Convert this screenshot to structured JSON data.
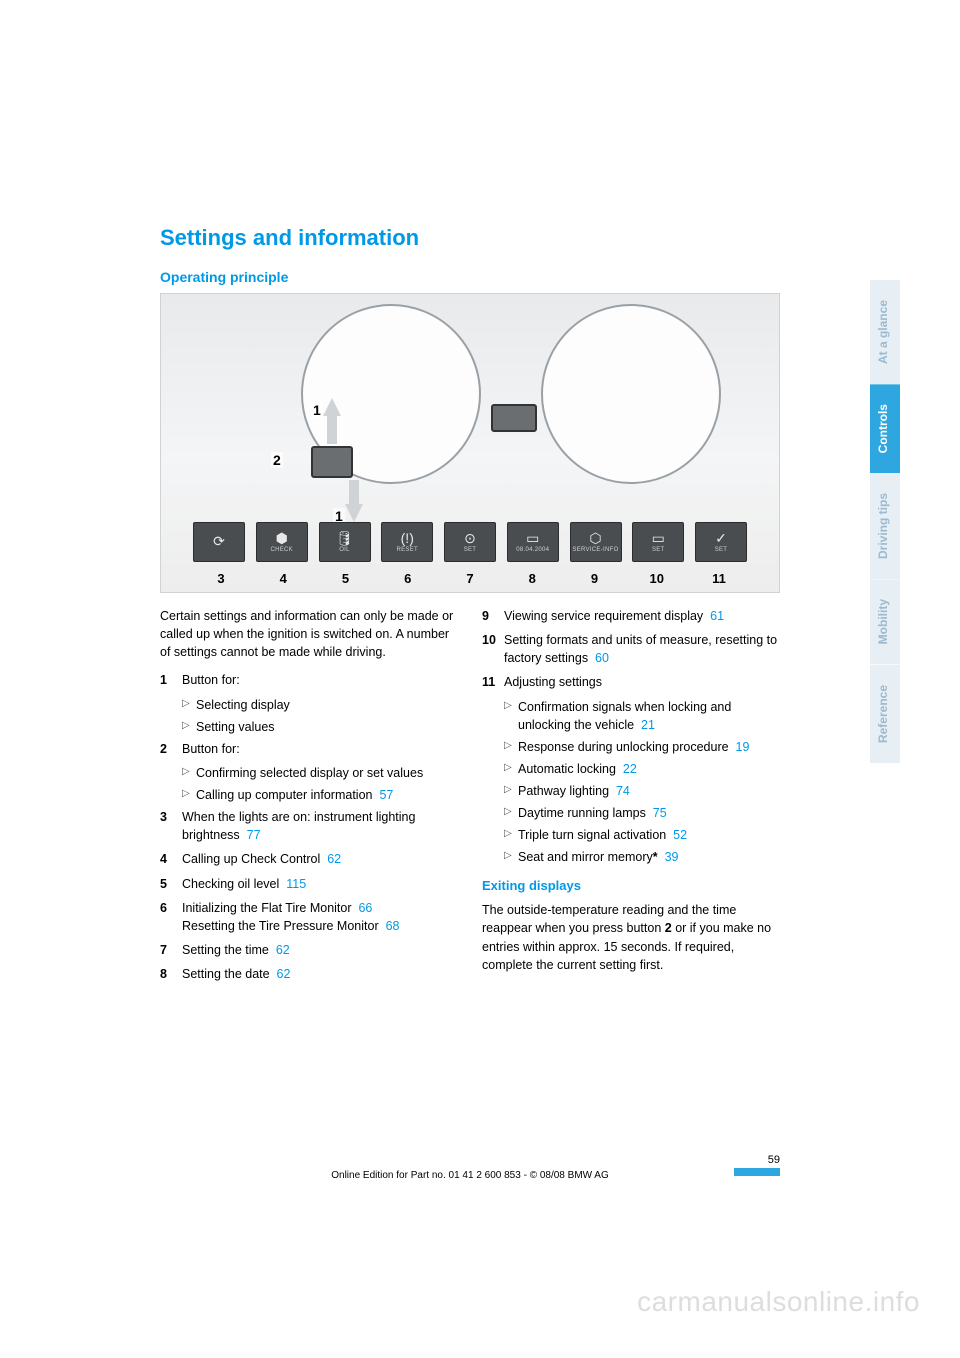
{
  "title": "Settings and information",
  "subheading": "Operating principle",
  "figure": {
    "callouts": {
      "topArrow": "1",
      "bottomArrow": "1",
      "stalk": "2"
    },
    "iconSymbols": [
      "⟳",
      "⬢",
      "🛢",
      "(!)",
      "⊙",
      "▭",
      "⬡",
      "▭",
      "✓"
    ],
    "iconLabels": [
      "",
      "CHECK",
      "OIL",
      "RESET",
      "SET",
      "08.04.2004",
      "SERVICE-INFO",
      "SET",
      "SET"
    ],
    "numbers": [
      "3",
      "4",
      "5",
      "6",
      "7",
      "8",
      "9",
      "10",
      "11"
    ]
  },
  "intro": "Certain settings and information can only be made or called up when the ignition is switched on. A number of settings cannot be made while driving.",
  "leftItems": [
    {
      "n": "1",
      "text": "Button for:",
      "subs": [
        {
          "text": "Selecting display"
        },
        {
          "text": "Setting values"
        }
      ]
    },
    {
      "n": "2",
      "text": "Button for:",
      "subs": [
        {
          "text": "Confirming selected display or set values"
        },
        {
          "text": "Calling up computer information",
          "link": "57"
        }
      ]
    },
    {
      "n": "3",
      "text": "When the lights are on: instrument lighting brightness",
      "link": "77"
    },
    {
      "n": "4",
      "text": "Calling up Check Control",
      "link": "62"
    },
    {
      "n": "5",
      "text": "Checking oil level",
      "link": "115"
    },
    {
      "n": "6",
      "text": "Initializing the Flat Tire Monitor",
      "link": "66",
      "extraText": "Resetting the Tire Pressure Monitor",
      "extraLink": "68"
    },
    {
      "n": "7",
      "text": "Setting the time",
      "link": "62"
    },
    {
      "n": "8",
      "text": "Setting the date",
      "link": "62"
    }
  ],
  "rightItems": [
    {
      "n": "9",
      "text": "Viewing service requirement display",
      "link": "61"
    },
    {
      "n": "10",
      "text": "Setting formats and units of measure, resetting to factory settings",
      "link": "60"
    },
    {
      "n": "11",
      "text": "Adjusting settings",
      "subs": [
        {
          "text": "Confirmation signals when locking and unlocking the vehicle",
          "link": "21"
        },
        {
          "text": "Response during unlocking procedure",
          "link": "19"
        },
        {
          "text": "Automatic locking",
          "link": "22"
        },
        {
          "text": "Pathway lighting",
          "link": "74"
        },
        {
          "text": "Daytime running lamps",
          "link": "75"
        },
        {
          "text": "Triple turn signal activation",
          "link": "52"
        },
        {
          "text": "Seat and mirror memory",
          "star": true,
          "link": "39"
        }
      ]
    }
  ],
  "exiting": {
    "heading": "Exiting displays",
    "text": "The outside-temperature reading and the time reappear when you press button 2 or if you make no entries within approx. 15 seconds. If required, complete the current setting first.",
    "boldWord": "2"
  },
  "tabs": [
    {
      "label": "At a glance",
      "active": false
    },
    {
      "label": "Controls",
      "active": true
    },
    {
      "label": "Driving tips",
      "active": false
    },
    {
      "label": "Mobility",
      "active": false
    },
    {
      "label": "Reference",
      "active": false
    }
  ],
  "footer": {
    "pageNumber": "59",
    "line": "Online Edition for Part no. 01 41 2 600 853 - © 08/08 BMW AG"
  },
  "watermark": "carmanualsonline.info"
}
